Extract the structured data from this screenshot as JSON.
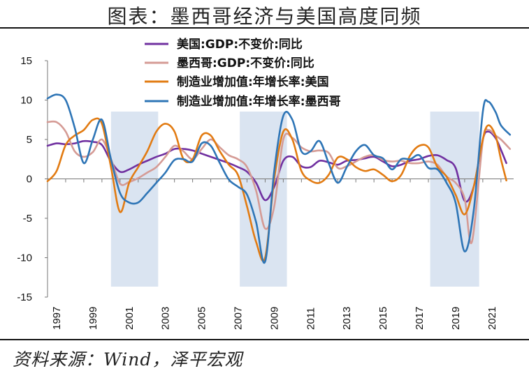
{
  "title": "图表：墨西哥经济与美国高度同频",
  "source": "资料来源：Wind，泽平宏观",
  "chart_data": {
    "type": "line",
    "title": "图表：墨西哥经济与美国高度同频",
    "ylim": [
      -15,
      15
    ],
    "yticks": [
      "15",
      "10",
      "5",
      "0",
      "-5",
      "-10",
      "-15"
    ],
    "xlim": [
      1997,
      2022.7
    ],
    "xticks": [
      "1997",
      "1999",
      "2001",
      "2003",
      "2005",
      "2007",
      "2009",
      "2011",
      "2013",
      "2015",
      "2017",
      "2019",
      "2021"
    ],
    "legend_position": "top-center",
    "recessions": [
      [
        2000.5,
        2003.1
      ],
      [
        2007.6,
        2010.2
      ],
      [
        2018.1,
        2020.8
      ]
    ],
    "series": [
      {
        "name": "美国:GDP:不变价:同比",
        "color": "#7030a0",
        "points": [
          [
            1997,
            4.2
          ],
          [
            1997.5,
            4.5
          ],
          [
            1998,
            4.4
          ],
          [
            1998.5,
            4.5
          ],
          [
            1999,
            4.8
          ],
          [
            1999.5,
            4.7
          ],
          [
            2000,
            4.3
          ],
          [
            2000.5,
            2.2
          ],
          [
            2001,
            0.9
          ],
          [
            2001.5,
            1.2
          ],
          [
            2002,
            1.8
          ],
          [
            2002.5,
            2.3
          ],
          [
            2003,
            2.8
          ],
          [
            2003.5,
            3.2
          ],
          [
            2004,
            3.8
          ],
          [
            2004.5,
            3.8
          ],
          [
            2005,
            3.6
          ],
          [
            2005.5,
            3.2
          ],
          [
            2006,
            2.8
          ],
          [
            2006.5,
            2.4
          ],
          [
            2007,
            2.0
          ],
          [
            2007.5,
            1.5
          ],
          [
            2008,
            0.9
          ],
          [
            2008.5,
            -0.5
          ],
          [
            2009,
            -2.7
          ],
          [
            2009.5,
            -1.0
          ],
          [
            2010,
            2.3
          ],
          [
            2010.5,
            2.8
          ],
          [
            2011,
            1.6
          ],
          [
            2011.5,
            1.5
          ],
          [
            2012,
            2.3
          ],
          [
            2012.5,
            2.1
          ],
          [
            2013,
            1.8
          ],
          [
            2013.5,
            2.3
          ],
          [
            2014,
            2.4
          ],
          [
            2014.5,
            2.6
          ],
          [
            2015,
            2.8
          ],
          [
            2015.5,
            2.2
          ],
          [
            2016,
            1.6
          ],
          [
            2016.5,
            1.8
          ],
          [
            2017,
            2.3
          ],
          [
            2017.5,
            2.5
          ],
          [
            2018,
            2.9
          ],
          [
            2018.5,
            3.0
          ],
          [
            2019,
            2.4
          ],
          [
            2019.5,
            1.4
          ],
          [
            2020,
            -2.8
          ],
          [
            2020.5,
            -1.0
          ],
          [
            2021,
            5.0
          ],
          [
            2021.3,
            6.0
          ],
          [
            2021.7,
            5.2
          ],
          [
            2022,
            3.7
          ],
          [
            2022.3,
            2.0
          ]
        ]
      },
      {
        "name": "墨西哥:GDP:不变价:同比",
        "color": "#d59b95",
        "points": [
          [
            1997,
            7.2
          ],
          [
            1997.5,
            7.2
          ],
          [
            1998,
            6.0
          ],
          [
            1998.5,
            3.5
          ],
          [
            1999,
            2.8
          ],
          [
            1999.5,
            3.4
          ],
          [
            2000,
            5.0
          ],
          [
            2000.5,
            2.5
          ],
          [
            2001,
            -0.6
          ],
          [
            2001.5,
            -0.4
          ],
          [
            2002,
            0.1
          ],
          [
            2002.5,
            0.8
          ],
          [
            2003,
            1.5
          ],
          [
            2003.5,
            2.8
          ],
          [
            2004,
            4.2
          ],
          [
            2004.5,
            3.5
          ],
          [
            2005,
            2.5
          ],
          [
            2005.5,
            3.8
          ],
          [
            2006,
            5.0
          ],
          [
            2006.5,
            4.0
          ],
          [
            2007,
            3.0
          ],
          [
            2007.5,
            2.5
          ],
          [
            2008,
            1.5
          ],
          [
            2008.5,
            -1.5
          ],
          [
            2009,
            -6.3
          ],
          [
            2009.5,
            -3.5
          ],
          [
            2010,
            5.0
          ],
          [
            2010.5,
            5.2
          ],
          [
            2011,
            4.0
          ],
          [
            2011.5,
            3.5
          ],
          [
            2012,
            3.6
          ],
          [
            2012.5,
            3.3
          ],
          [
            2013,
            1.4
          ],
          [
            2013.5,
            1.6
          ],
          [
            2014,
            2.2
          ],
          [
            2014.5,
            2.8
          ],
          [
            2015,
            3.0
          ],
          [
            2015.5,
            2.4
          ],
          [
            2016,
            2.2
          ],
          [
            2016.5,
            2.3
          ],
          [
            2017,
            2.0
          ],
          [
            2017.5,
            2.0
          ],
          [
            2018,
            2.2
          ],
          [
            2018.5,
            1.8
          ],
          [
            2019,
            0.3
          ],
          [
            2019.5,
            -0.5
          ],
          [
            2020,
            -2.5
          ],
          [
            2020.4,
            -8.0
          ],
          [
            2021,
            4.8
          ],
          [
            2021.3,
            6.2
          ],
          [
            2021.7,
            5.5
          ],
          [
            2022,
            5.0
          ],
          [
            2022.5,
            3.8
          ]
        ]
      },
      {
        "name": "制造业增加值:年增长率:美国",
        "color": "#e27b12",
        "points": [
          [
            1997,
            -0.3
          ],
          [
            1997.5,
            1.0
          ],
          [
            1998,
            4.3
          ],
          [
            1998.5,
            5.5
          ],
          [
            1999,
            6.2
          ],
          [
            1999.5,
            7.5
          ],
          [
            2000,
            7.0
          ],
          [
            2000.5,
            1.5
          ],
          [
            2001,
            -4.2
          ],
          [
            2001.5,
            -0.5
          ],
          [
            2002,
            1.5
          ],
          [
            2002.5,
            3.5
          ],
          [
            2003,
            6.0
          ],
          [
            2003.5,
            7.0
          ],
          [
            2004,
            6.0
          ],
          [
            2004.5,
            2.5
          ],
          [
            2005,
            2.5
          ],
          [
            2005.5,
            5.5
          ],
          [
            2006,
            5.5
          ],
          [
            2006.5,
            3.5
          ],
          [
            2007,
            1.8
          ],
          [
            2007.5,
            0.5
          ],
          [
            2008,
            -3.5
          ],
          [
            2008.5,
            -8.0
          ],
          [
            2009,
            -10.0
          ],
          [
            2009.5,
            0.0
          ],
          [
            2010,
            6.0
          ],
          [
            2010.5,
            5.0
          ],
          [
            2011,
            1.0
          ],
          [
            2011.5,
            -0.2
          ],
          [
            2012,
            -0.5
          ],
          [
            2012.5,
            0.5
          ],
          [
            2013,
            2.7
          ],
          [
            2013.5,
            2.5
          ],
          [
            2014,
            1.5
          ],
          [
            2014.5,
            1.0
          ],
          [
            2015,
            1.2
          ],
          [
            2015.5,
            0.5
          ],
          [
            2016,
            -0.3
          ],
          [
            2016.5,
            0.5
          ],
          [
            2017,
            3.0
          ],
          [
            2017.5,
            4.2
          ],
          [
            2018,
            4.0
          ],
          [
            2018.5,
            1.5
          ],
          [
            2019,
            0.3
          ],
          [
            2019.5,
            -2.0
          ],
          [
            2020,
            -4.5
          ],
          [
            2020.5,
            -1.0
          ],
          [
            2021,
            5.0
          ],
          [
            2021.3,
            6.8
          ],
          [
            2021.7,
            5.5
          ],
          [
            2022,
            2.5
          ],
          [
            2022.3,
            -0.2
          ]
        ]
      },
      {
        "name": "制造业增加值:年增长率:墨西哥",
        "color": "#2e75b6",
        "points": [
          [
            1997,
            10.2
          ],
          [
            1997.5,
            10.7
          ],
          [
            1998,
            10.0
          ],
          [
            1998.5,
            6.5
          ],
          [
            1999,
            2.0
          ],
          [
            1999.5,
            5.0
          ],
          [
            2000,
            7.5
          ],
          [
            2000.5,
            2.5
          ],
          [
            2001,
            -1.8
          ],
          [
            2001.5,
            -3.0
          ],
          [
            2002,
            -3.0
          ],
          [
            2002.5,
            -1.8
          ],
          [
            2003,
            -0.5
          ],
          [
            2003.5,
            0.8
          ],
          [
            2004,
            2.4
          ],
          [
            2004.5,
            2.5
          ],
          [
            2005,
            2.2
          ],
          [
            2005.5,
            4.5
          ],
          [
            2006,
            4.2
          ],
          [
            2006.5,
            2.0
          ],
          [
            2007,
            -0.1
          ],
          [
            2007.5,
            -1.0
          ],
          [
            2008,
            -2.0
          ],
          [
            2008.5,
            -5.5
          ],
          [
            2009,
            -10.5
          ],
          [
            2009.5,
            1.0
          ],
          [
            2010,
            8.0
          ],
          [
            2010.5,
            7.5
          ],
          [
            2011,
            3.5
          ],
          [
            2011.5,
            3.5
          ],
          [
            2012,
            4.8
          ],
          [
            2012.5,
            2.0
          ],
          [
            2013,
            -0.5
          ],
          [
            2013.5,
            1.5
          ],
          [
            2014,
            3.5
          ],
          [
            2014.5,
            4.3
          ],
          [
            2015,
            3.0
          ],
          [
            2015.5,
            2.6
          ],
          [
            2016,
            1.2
          ],
          [
            2016.5,
            2.5
          ],
          [
            2017,
            2.5
          ],
          [
            2017.5,
            3.0
          ],
          [
            2018,
            1.4
          ],
          [
            2018.5,
            1.2
          ],
          [
            2019,
            -0.5
          ],
          [
            2019.5,
            -3.0
          ],
          [
            2020,
            -9.2
          ],
          [
            2020.5,
            -4.0
          ],
          [
            2021,
            8.5
          ],
          [
            2021.3,
            9.8
          ],
          [
            2021.7,
            8.5
          ],
          [
            2022,
            6.8
          ],
          [
            2022.5,
            5.6
          ]
        ]
      }
    ]
  }
}
